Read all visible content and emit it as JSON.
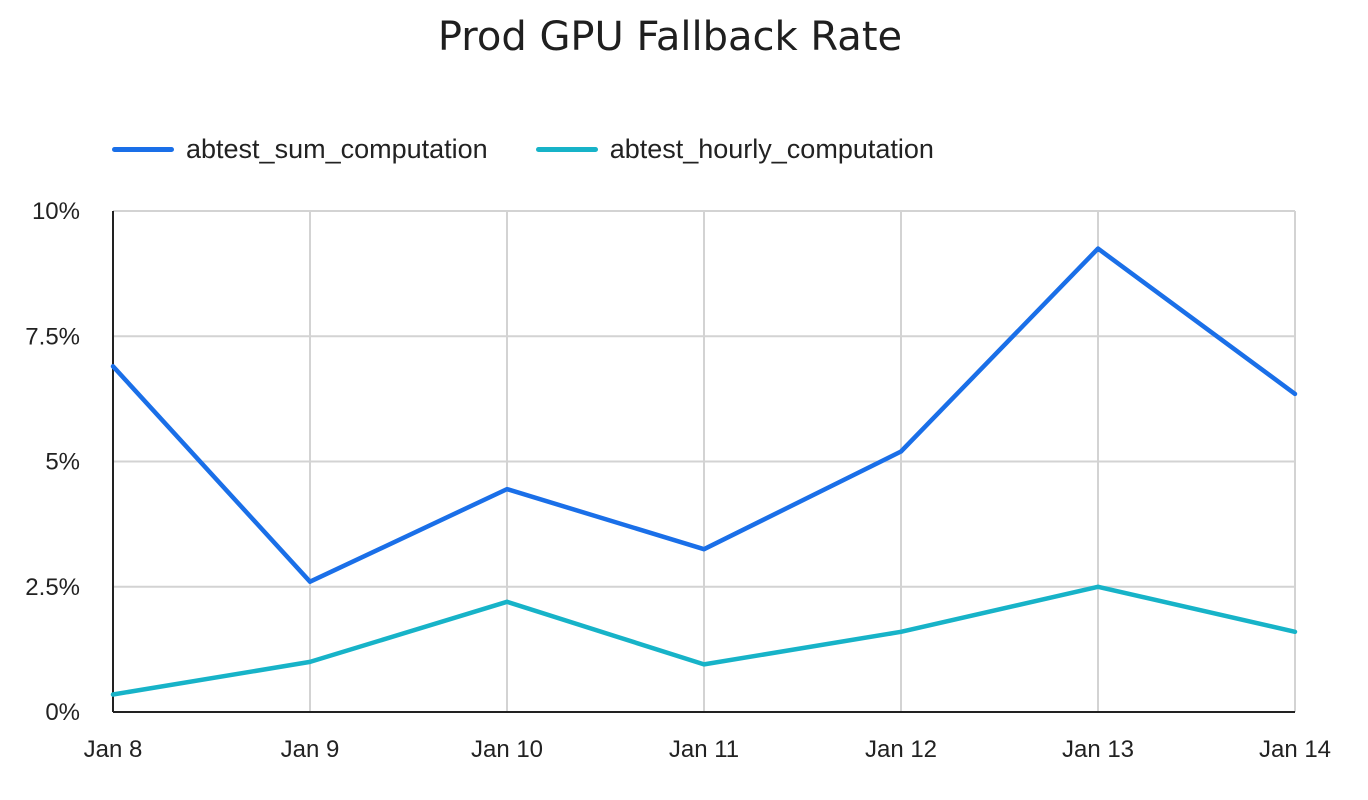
{
  "chart_data": {
    "type": "line",
    "title": "Prod GPU Fallback Rate",
    "categories": [
      "Jan 8",
      "Jan 9",
      "Jan 10",
      "Jan 11",
      "Jan 12",
      "Jan 13",
      "Jan 14"
    ],
    "series": [
      {
        "name": "abtest_sum_computation",
        "color": "#1a6fe8",
        "values": [
          6.9,
          2.6,
          4.45,
          3.25,
          5.2,
          9.25,
          6.35
        ]
      },
      {
        "name": "abtest_hourly_computation",
        "color": "#17b3c8",
        "values": [
          0.35,
          1.0,
          2.2,
          0.95,
          1.6,
          2.5,
          1.6
        ]
      }
    ],
    "yticks": [
      "0%",
      "2.5%",
      "5%",
      "7.5%",
      "10%"
    ],
    "ytick_values": [
      0,
      2.5,
      5,
      7.5,
      10
    ],
    "ylim": [
      0,
      10
    ],
    "grid": true,
    "legend_position": "top-left"
  }
}
